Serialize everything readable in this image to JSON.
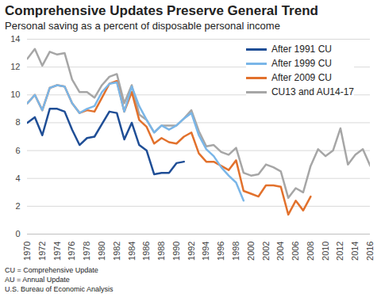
{
  "chart_data": {
    "type": "line",
    "title": "Comprehensive Updates Preserve General Trend",
    "subtitle": "Personal saving as a percent of disposable personal income",
    "notes": [
      "CU = Comprehensive Update",
      "AU = Annual Update",
      "U.S. Bureau of Economic Analysis"
    ],
    "x": [
      1970,
      1971,
      1972,
      1973,
      1974,
      1975,
      1976,
      1977,
      1978,
      1979,
      1980,
      1981,
      1982,
      1983,
      1984,
      1985,
      1986,
      1987,
      1988,
      1989,
      1990,
      1991,
      1992,
      1993,
      1994,
      1995,
      1996,
      1997,
      1998,
      1999,
      2000,
      2001,
      2002,
      2003,
      2004,
      2005,
      2006,
      2007,
      2008,
      2009,
      2010,
      2011,
      2012,
      2013,
      2014,
      2015,
      2016
    ],
    "series": [
      {
        "name": "After 1991 CU",
        "color": "#1f4e96",
        "values": [
          8.0,
          8.4,
          7.1,
          9.0,
          9.0,
          8.8,
          7.5,
          6.4,
          6.9,
          7.0,
          7.9,
          8.8,
          8.7,
          6.8,
          8.0,
          6.4,
          6.0,
          4.3,
          4.4,
          4.4,
          5.1,
          5.2,
          null,
          null,
          null,
          null,
          null,
          null,
          null,
          null,
          null,
          null,
          null,
          null,
          null,
          null,
          null,
          null,
          null,
          null,
          null,
          null,
          null,
          null,
          null,
          null,
          null
        ]
      },
      {
        "name": "After 1999 CU",
        "color": "#7ab6e8",
        "values": [
          9.4,
          10.0,
          8.9,
          10.5,
          10.7,
          10.6,
          9.4,
          8.7,
          9.0,
          9.2,
          10.2,
          10.8,
          10.9,
          8.8,
          10.6,
          9.2,
          8.2,
          7.3,
          7.8,
          7.5,
          7.8,
          8.3,
          8.7,
          7.1,
          6.1,
          5.6,
          4.8,
          4.2,
          3.7,
          2.4,
          null,
          null,
          null,
          null,
          null,
          null,
          null,
          null,
          null,
          null,
          null,
          null,
          null,
          null,
          null,
          null,
          null
        ]
      },
      {
        "name": "After 2009 CU",
        "color": "#e2712c",
        "values": [
          9.4,
          10.0,
          8.9,
          10.5,
          10.7,
          10.6,
          9.4,
          8.7,
          8.9,
          8.8,
          9.8,
          10.8,
          11.0,
          8.8,
          10.2,
          8.2,
          7.7,
          6.5,
          6.9,
          6.6,
          6.5,
          7.0,
          7.3,
          5.8,
          5.2,
          5.2,
          4.9,
          4.6,
          5.3,
          3.1,
          2.9,
          2.7,
          3.5,
          3.5,
          3.4,
          1.4,
          2.4,
          1.7,
          2.7,
          null,
          null,
          null,
          null,
          null,
          null,
          null,
          null
        ]
      },
      {
        "name": "CU13 and  AU14-17",
        "color": "#a6a6a6",
        "values": [
          12.6,
          13.3,
          12.1,
          13.1,
          12.9,
          13.0,
          11.1,
          10.2,
          10.2,
          9.8,
          10.7,
          11.3,
          11.5,
          9.4,
          10.7,
          8.6,
          8.2,
          7.3,
          7.8,
          7.8,
          7.8,
          8.3,
          8.9,
          7.4,
          6.3,
          6.4,
          5.9,
          5.7,
          6.2,
          4.4,
          4.2,
          4.3,
          5.0,
          4.8,
          4.5,
          2.6,
          3.3,
          3.0,
          4.9,
          6.1,
          5.6,
          6.0,
          7.6,
          5.0,
          5.7,
          6.1,
          4.9
        ]
      }
    ],
    "xlim": [
      1970,
      2016
    ],
    "xticks": [
      1970,
      1972,
      1974,
      1976,
      1978,
      1980,
      1982,
      1984,
      1986,
      1988,
      1990,
      1992,
      1994,
      1996,
      1998,
      2000,
      2002,
      2004,
      2006,
      2008,
      2010,
      2012,
      2014,
      2016
    ],
    "ylim": [
      0,
      14
    ],
    "yticks": [
      0,
      2,
      4,
      6,
      8,
      10,
      12,
      14
    ],
    "grid": true,
    "legend": "top-right"
  }
}
